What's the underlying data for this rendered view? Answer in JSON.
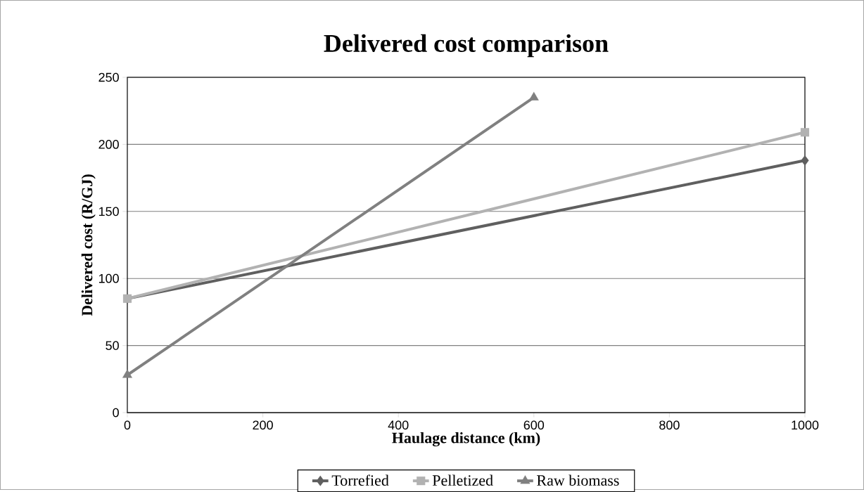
{
  "chart_data": {
    "type": "line",
    "title": "Delivered cost comparison",
    "xlabel": "Haulage distance (km)",
    "ylabel": "Delivered cost (R/GJ)",
    "series": [
      {
        "name": "Torrefied",
        "color": "#5f5f5f",
        "marker": "diamond",
        "x": [
          0,
          1000
        ],
        "values": [
          85,
          188
        ]
      },
      {
        "name": "Pelletized",
        "color": "#b2b2b2",
        "marker": "square",
        "x": [
          0,
          1000
        ],
        "values": [
          85,
          209
        ]
      },
      {
        "name": "Raw biomass",
        "color": "#808080",
        "marker": "triangle",
        "x": [
          0,
          600
        ],
        "values": [
          28,
          235
        ]
      }
    ],
    "xlim": [
      0,
      1000
    ],
    "ylim": [
      0,
      250
    ],
    "xticks": [
      0,
      200,
      400,
      600,
      800,
      1000
    ],
    "yticks": [
      0,
      50,
      100,
      150,
      200,
      250
    ],
    "grid": "y",
    "legend": "bottom"
  }
}
